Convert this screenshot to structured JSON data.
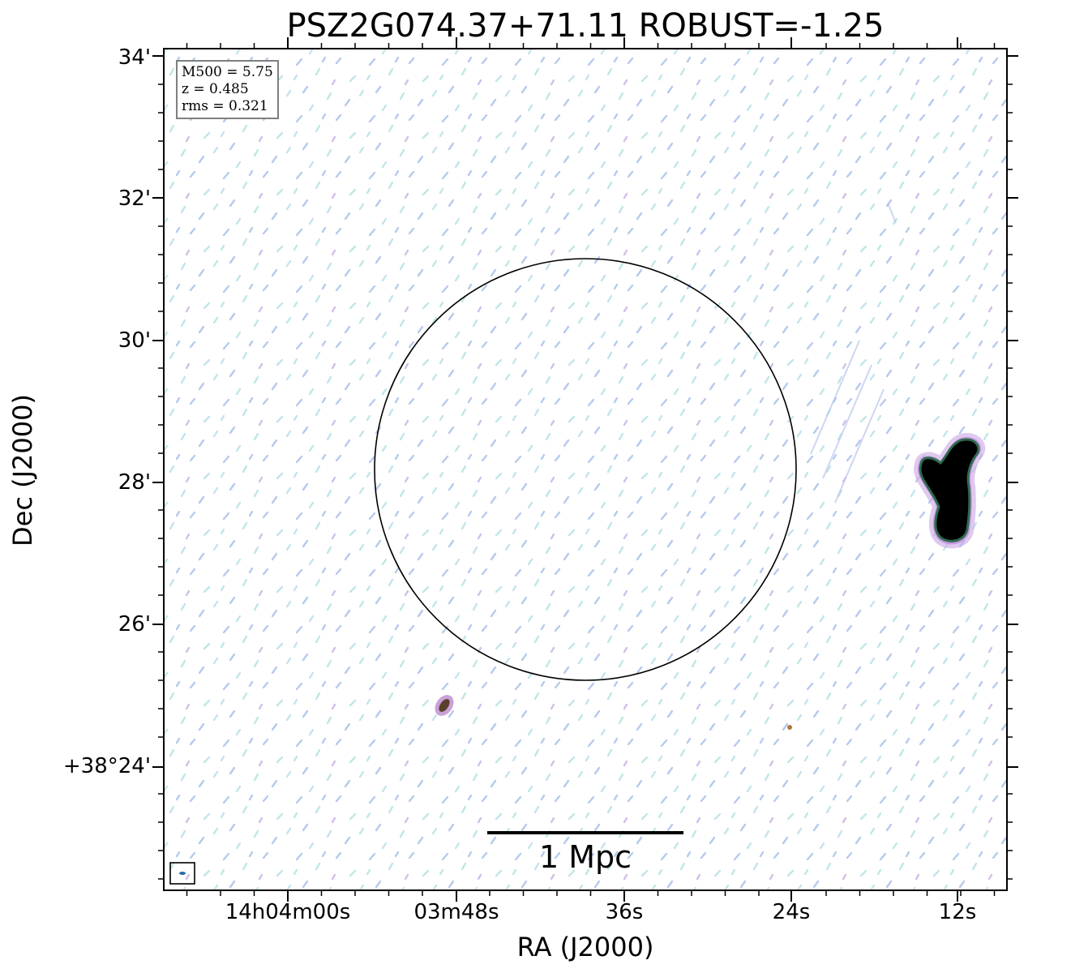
{
  "title": "PSZ2G074.37+71.11 ROBUST=-1.25",
  "axes": {
    "xlabel": "RA (J2000)",
    "ylabel": "Dec (J2000)",
    "x_ticks": [
      "14h04m00s",
      "03m48s",
      "36s",
      "24s",
      "12s"
    ],
    "y_ticks": [
      "34'",
      "32'",
      "30'",
      "28'",
      "26'",
      "+38°24'"
    ]
  },
  "info_box": {
    "m500": "M500 = 5.75",
    "z": "z = 0.485",
    "rms": "rms = 0.321"
  },
  "scalebar": {
    "label": "1 Mpc"
  },
  "colors": {
    "noise_blue": "#a9c1ea",
    "noise_cyan": "#b6e0e6",
    "noise_purple": "#a77fd6",
    "source_core": "#000000",
    "source_edge": "#2f6b4f"
  }
}
